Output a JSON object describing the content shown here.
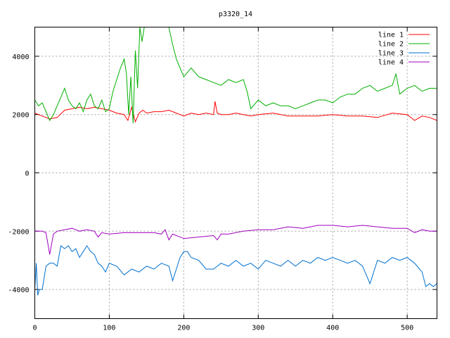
{
  "chart_data": {
    "type": "line",
    "title": "p3320_14",
    "xlabel": "",
    "ylabel": "",
    "xlim": [
      0,
      540
    ],
    "ylim": [
      -5000,
      5000
    ],
    "xticks": [
      0,
      100,
      200,
      300,
      400,
      500
    ],
    "yticks": [
      -4000,
      -2000,
      0,
      2000,
      4000
    ],
    "grid": true,
    "legend_position": "top-right",
    "series": [
      {
        "name": "line 1",
        "color": "#ff0000",
        "x": [
          0,
          10,
          20,
          30,
          40,
          50,
          60,
          70,
          80,
          90,
          100,
          110,
          120,
          125,
          130,
          135,
          140,
          145,
          150,
          160,
          170,
          180,
          190,
          200,
          210,
          220,
          230,
          240,
          242,
          245,
          250,
          260,
          270,
          280,
          290,
          300,
          320,
          340,
          360,
          380,
          400,
          420,
          440,
          460,
          480,
          500,
          510,
          520,
          530,
          540
        ],
        "y": [
          2050,
          1950,
          1850,
          1900,
          2150,
          2200,
          2250,
          2200,
          2250,
          2200,
          2150,
          2050,
          2000,
          1800,
          2250,
          1750,
          2050,
          2150,
          2050,
          2100,
          2100,
          2150,
          2050,
          1950,
          2050,
          2000,
          2050,
          2000,
          2450,
          2050,
          2000,
          2000,
          2050,
          2000,
          1950,
          2000,
          2050,
          1950,
          1950,
          1950,
          2000,
          1950,
          1950,
          1900,
          2050,
          2000,
          1800,
          1950,
          1900,
          1800
        ]
      },
      {
        "name": "line 2",
        "color": "#00b000",
        "x": [
          0,
          5,
          10,
          15,
          20,
          25,
          30,
          35,
          40,
          45,
          50,
          55,
          60,
          65,
          70,
          75,
          80,
          85,
          90,
          95,
          100,
          105,
          110,
          115,
          120,
          123,
          126,
          129,
          132,
          135,
          138,
          141,
          144,
          147,
          150,
          155,
          160,
          165,
          170,
          175,
          180,
          185,
          190,
          195,
          200,
          210,
          220,
          230,
          240,
          250,
          260,
          270,
          280,
          285,
          290,
          300,
          310,
          320,
          330,
          340,
          350,
          360,
          370,
          380,
          390,
          400,
          410,
          420,
          430,
          440,
          450,
          460,
          470,
          480,
          485,
          490,
          500,
          510,
          520,
          530,
          540
        ],
        "y": [
          2500,
          2300,
          2400,
          2100,
          1800,
          2000,
          2300,
          2600,
          2900,
          2500,
          2300,
          2200,
          2400,
          2100,
          2500,
          2700,
          2300,
          2200,
          2500,
          2100,
          2200,
          2800,
          3200,
          3600,
          3900,
          3400,
          2000,
          3300,
          1700,
          4200,
          2900,
          5000,
          4500,
          5000,
          5000,
          5000,
          5000,
          5000,
          5000,
          5000,
          5000,
          4400,
          3900,
          3600,
          3300,
          3600,
          3300,
          3200,
          3100,
          3000,
          3200,
          3100,
          3200,
          2800,
          2200,
          2500,
          2300,
          2400,
          2300,
          2300,
          2200,
          2300,
          2400,
          2500,
          2500,
          2400,
          2600,
          2700,
          2700,
          2900,
          3000,
          2800,
          2900,
          3000,
          3400,
          2700,
          2900,
          3000,
          2800,
          2900,
          2900
        ]
      },
      {
        "name": "line 3",
        "color": "#0070d0",
        "x": [
          0,
          2,
          4,
          6,
          10,
          15,
          20,
          25,
          30,
          35,
          40,
          45,
          50,
          55,
          60,
          65,
          70,
          75,
          80,
          85,
          90,
          95,
          100,
          110,
          120,
          130,
          140,
          150,
          160,
          170,
          180,
          185,
          190,
          195,
          200,
          205,
          210,
          220,
          230,
          240,
          250,
          260,
          270,
          280,
          290,
          300,
          310,
          320,
          330,
          340,
          350,
          360,
          370,
          380,
          390,
          400,
          410,
          420,
          430,
          440,
          450,
          455,
          460,
          470,
          480,
          490,
          500,
          510,
          520,
          525,
          530,
          535,
          540
        ],
        "y": [
          -4000,
          -3100,
          -4200,
          -4000,
          -4000,
          -3200,
          -3100,
          -3100,
          -3200,
          -2500,
          -2600,
          -2500,
          -2700,
          -2600,
          -2900,
          -2700,
          -2500,
          -2700,
          -2800,
          -3100,
          -3200,
          -3400,
          -3100,
          -3200,
          -3500,
          -3300,
          -3400,
          -3200,
          -3300,
          -3100,
          -3200,
          -3700,
          -3300,
          -2900,
          -2700,
          -2700,
          -2900,
          -3000,
          -3300,
          -3300,
          -3100,
          -3200,
          -3000,
          -3200,
          -3100,
          -3300,
          -3000,
          -3100,
          -3200,
          -3000,
          -3200,
          -3000,
          -3100,
          -2900,
          -3000,
          -2900,
          -3000,
          -3100,
          -3000,
          -3200,
          -3800,
          -3400,
          -3000,
          -3100,
          -2900,
          -3000,
          -2900,
          -3100,
          -3400,
          -3900,
          -3800,
          -3900,
          -3800
        ]
      },
      {
        "name": "line 4",
        "color": "#a000c0",
        "x": [
          0,
          10,
          15,
          20,
          25,
          30,
          40,
          50,
          60,
          70,
          80,
          85,
          90,
          100,
          120,
          140,
          160,
          170,
          175,
          180,
          185,
          190,
          200,
          220,
          240,
          245,
          250,
          260,
          280,
          300,
          320,
          340,
          360,
          380,
          400,
          420,
          440,
          460,
          480,
          500,
          510,
          520,
          530,
          540
        ],
        "y": [
          -2000,
          -2000,
          -2050,
          -2800,
          -2100,
          -2000,
          -1950,
          -1900,
          -2000,
          -1950,
          -2000,
          -2200,
          -2050,
          -2100,
          -2050,
          -2050,
          -2050,
          -2100,
          -1950,
          -2300,
          -2100,
          -2150,
          -2250,
          -2200,
          -2150,
          -2300,
          -2100,
          -2100,
          -2000,
          -1950,
          -1950,
          -1850,
          -1900,
          -1800,
          -1800,
          -1850,
          -1800,
          -1850,
          -1900,
          -1900,
          -2050,
          -1950,
          -2000,
          -2000
        ]
      }
    ]
  }
}
